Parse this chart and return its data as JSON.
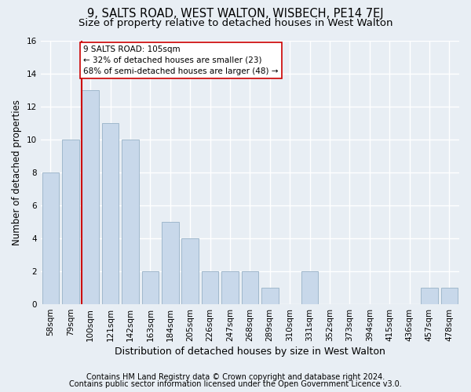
{
  "title": "9, SALTS ROAD, WEST WALTON, WISBECH, PE14 7EJ",
  "subtitle": "Size of property relative to detached houses in West Walton",
  "xlabel": "Distribution of detached houses by size in West Walton",
  "ylabel": "Number of detached properties",
  "categories": [
    "58sqm",
    "79sqm",
    "100sqm",
    "121sqm",
    "142sqm",
    "163sqm",
    "184sqm",
    "205sqm",
    "226sqm",
    "247sqm",
    "268sqm",
    "289sqm",
    "310sqm",
    "331sqm",
    "352sqm",
    "373sqm",
    "394sqm",
    "415sqm",
    "436sqm",
    "457sqm",
    "478sqm"
  ],
  "values": [
    8,
    10,
    13,
    11,
    10,
    2,
    5,
    4,
    2,
    2,
    2,
    1,
    0,
    2,
    0,
    0,
    0,
    0,
    0,
    1,
    1
  ],
  "bar_color": "#c8d8ea",
  "bar_edge_color": "#a0b8cc",
  "reference_line_idx": 2,
  "reference_line_color": "#cc0000",
  "annotation_line1": "9 SALTS ROAD: 105sqm",
  "annotation_line2": "← 32% of detached houses are smaller (23)",
  "annotation_line3": "68% of semi-detached houses are larger (48) →",
  "annotation_box_facecolor": "#ffffff",
  "annotation_box_edgecolor": "#cc0000",
  "ylim_max": 16,
  "yticks": [
    0,
    2,
    4,
    6,
    8,
    10,
    12,
    14,
    16
  ],
  "footer_line1": "Contains HM Land Registry data © Crown copyright and database right 2024.",
  "footer_line2": "Contains public sector information licensed under the Open Government Licence v3.0.",
  "background_color": "#e8eef4",
  "grid_color": "#ffffff",
  "title_fontsize": 10.5,
  "subtitle_fontsize": 9.5,
  "ylabel_fontsize": 8.5,
  "xlabel_fontsize": 9,
  "tick_fontsize": 7.5,
  "annotation_fontsize": 7.5,
  "footer_fontsize": 7
}
